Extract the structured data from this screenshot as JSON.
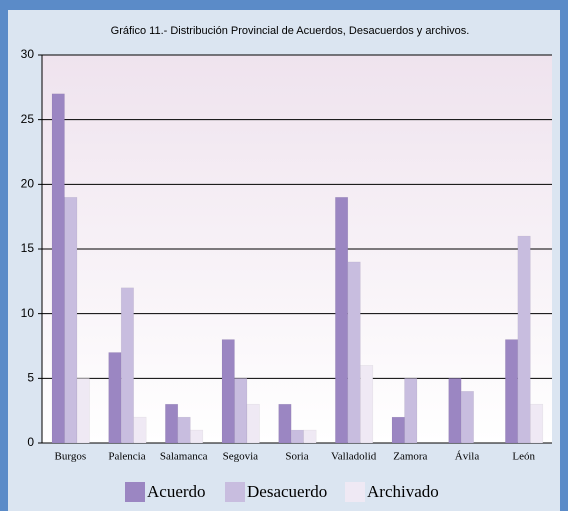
{
  "chart_data": {
    "type": "bar",
    "title": "Gráfico 11.- Distribución Provincial de Acuerdos, Desacuerdos y archivos.",
    "categories": [
      "Burgos",
      "Palencia",
      "Salamanca",
      "Segovia",
      "Soria",
      "Valladolid",
      "Zamora",
      "Ávila",
      "León"
    ],
    "series": [
      {
        "name": "Acuerdo",
        "color": "#9b86c2",
        "values": [
          27,
          7,
          3,
          8,
          3,
          19,
          2,
          5,
          8
        ]
      },
      {
        "name": "Desacuerdo",
        "color": "#c8bddf",
        "values": [
          19,
          12,
          2,
          5,
          1,
          14,
          5,
          4,
          16
        ]
      },
      {
        "name": "Archivado",
        "color": "#efe9f4",
        "values": [
          5,
          2,
          1,
          3,
          1,
          6,
          0,
          0,
          3
        ]
      }
    ],
    "ylim": [
      0,
      30
    ],
    "yticks": [
      0,
      5,
      10,
      15,
      20,
      25,
      30
    ],
    "grid": true,
    "legend": "bottom"
  }
}
